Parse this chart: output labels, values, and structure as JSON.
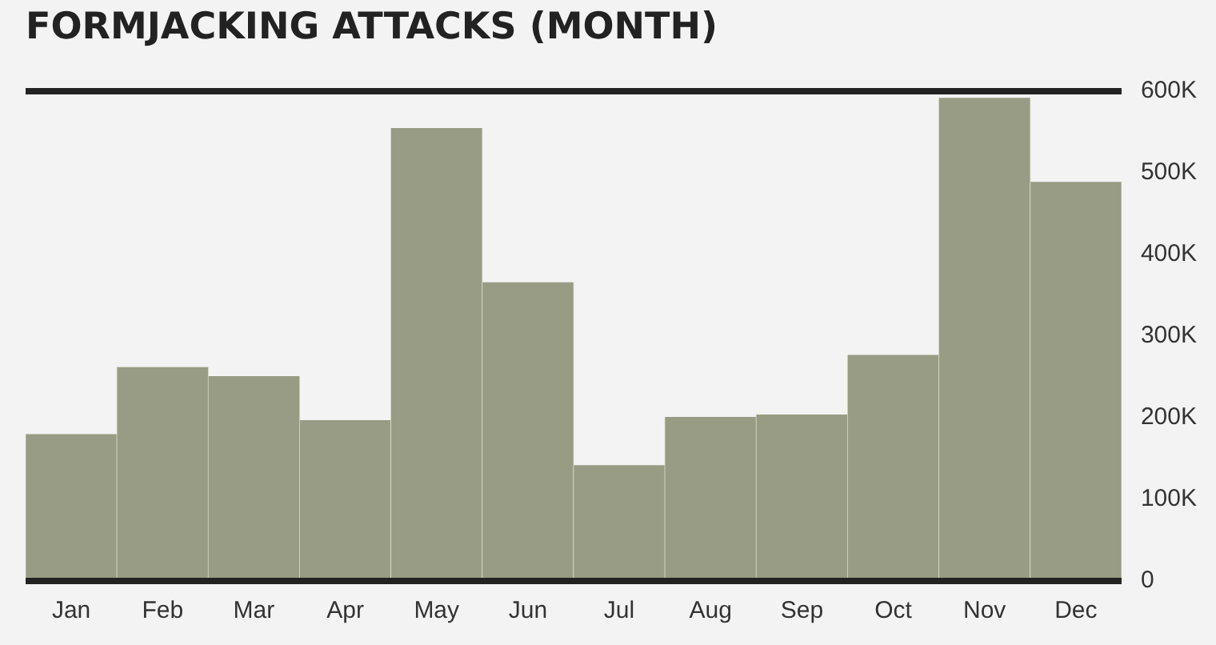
{
  "chart_data": {
    "type": "bar",
    "title": "FORMJACKING ATTACKS (MONTH)",
    "categories": [
      "Jan",
      "Feb",
      "Mar",
      "Apr",
      "May",
      "Jun",
      "Jul",
      "Aug",
      "Sep",
      "Oct",
      "Nov",
      "Dec"
    ],
    "values": [
      180000,
      262000,
      251000,
      197000,
      555000,
      366000,
      142000,
      201000,
      204000,
      277000,
      592000,
      489000
    ],
    "color": "#999c84",
    "ylim": [
      0,
      600000
    ],
    "yticks": [
      0,
      {
        "value": 100000,
        "label": "100K"
      },
      {
        "value": 200000,
        "label": "200K"
      },
      {
        "value": 300000,
        "label": "300K"
      },
      {
        "value": 400000,
        "label": "400K"
      },
      {
        "value": 500000,
        "label": "500K"
      },
      {
        "value": 600000,
        "label": "600K"
      }
    ],
    "grid": false,
    "legend": false
  }
}
